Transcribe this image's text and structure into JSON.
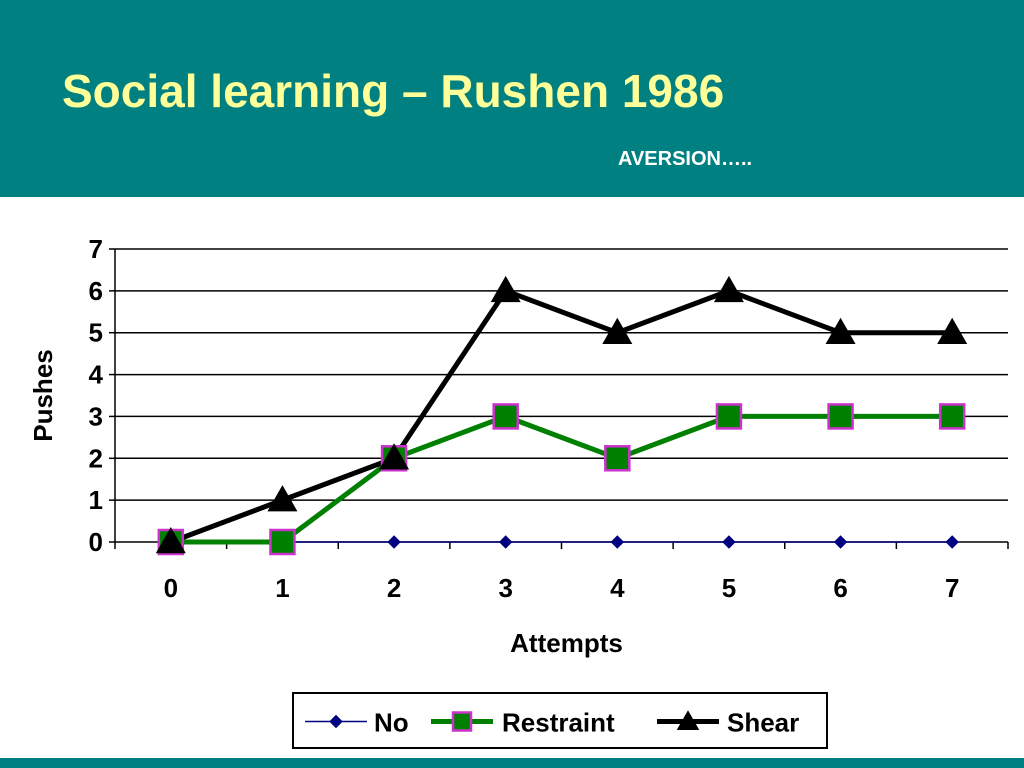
{
  "slide": {
    "title": "Social learning – Rushen 1986",
    "subtitle": "AVERSION….."
  },
  "colors": {
    "header_bg": "#008080",
    "title_text": "#ffff99",
    "subtitle_text": "#ffffff"
  },
  "chart_data": {
    "type": "line",
    "xlabel": "Attempts",
    "ylabel": "Pushes",
    "x": [
      0,
      1,
      2,
      3,
      4,
      5,
      6,
      7
    ],
    "xlim": [
      0,
      7
    ],
    "ylim": [
      0,
      7
    ],
    "yticks": [
      0,
      1,
      2,
      3,
      4,
      5,
      6,
      7
    ],
    "grid": "horizontal",
    "legend_position": "bottom",
    "series": [
      {
        "name": "No",
        "values": [
          0,
          0,
          0,
          0,
          0,
          0,
          0,
          0
        ],
        "color": "#000080",
        "marker": "diamond",
        "marker_color": "#000080"
      },
      {
        "name": "Restraint",
        "values": [
          0,
          0,
          2,
          3,
          2,
          3,
          3,
          3
        ],
        "color": "#008000",
        "marker": "square",
        "marker_color": "#008000",
        "marker_edge": "#cc33cc"
      },
      {
        "name": "Shear",
        "values": [
          0,
          1,
          2,
          6,
          5,
          6,
          5,
          5
        ],
        "color": "#000000",
        "marker": "triangle",
        "marker_color": "#000000"
      }
    ]
  }
}
